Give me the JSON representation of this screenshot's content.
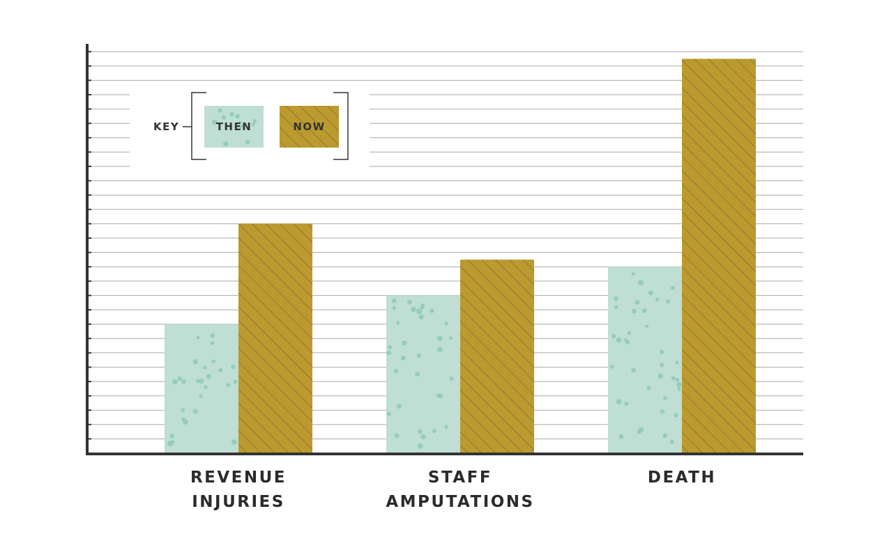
{
  "chart_data": {
    "type": "bar",
    "categories": [
      "REVENUE INJURIES",
      "STAFF AMPUTATIONS",
      "DEATH"
    ],
    "category_lines": [
      [
        "REVENUE",
        "INJURIES"
      ],
      [
        "STAFF",
        "AMPUTATIONS"
      ],
      [
        "DEATH"
      ]
    ],
    "series": [
      {
        "name": "THEN",
        "values": [
          9,
          11,
          13
        ],
        "color": "#bfded4",
        "dot_color": "#8ccbb3"
      },
      {
        "name": "NOW",
        "values": [
          16,
          13.5,
          27.5
        ],
        "color": "#bb9a2e",
        "stripe_color": "#8a6e3a"
      }
    ],
    "ylim": [
      0,
      28
    ],
    "grid": true,
    "legend": {
      "title": "KEY",
      "position": "top-left"
    },
    "title": "",
    "xlabel": "",
    "ylabel": "",
    "axis_color": "#333333",
    "grid_color": "#aaaaaa"
  }
}
